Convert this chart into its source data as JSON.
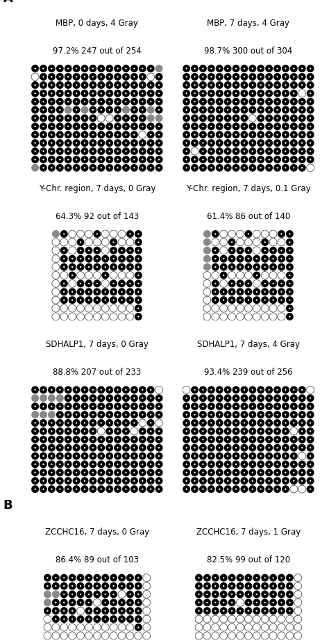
{
  "panels": [
    {
      "title": "MBP, 0 days, 4 Gray",
      "label_text": "97.2% 247 out of 254",
      "rows": 13,
      "cols": 16,
      "grid": [
        [
          0,
          0,
          0,
          0,
          0,
          0,
          0,
          0,
          0,
          0,
          0,
          0,
          0,
          0,
          0,
          2
        ],
        [
          1,
          0,
          0,
          0,
          0,
          0,
          0,
          0,
          0,
          0,
          0,
          0,
          0,
          0,
          1,
          0
        ],
        [
          0,
          0,
          0,
          0,
          0,
          0,
          0,
          0,
          0,
          0,
          0,
          0,
          0,
          0,
          0,
          0
        ],
        [
          0,
          0,
          0,
          0,
          0,
          0,
          0,
          0,
          0,
          0,
          0,
          0,
          0,
          0,
          0,
          0
        ],
        [
          0,
          0,
          0,
          0,
          0,
          0,
          0,
          0,
          0,
          0,
          0,
          0,
          0,
          0,
          0,
          0
        ],
        [
          0,
          0,
          0,
          0,
          2,
          0,
          2,
          0,
          0,
          0,
          0,
          2,
          0,
          0,
          2,
          0
        ],
        [
          0,
          0,
          0,
          0,
          0,
          0,
          0,
          0,
          1,
          1,
          0,
          0,
          0,
          0,
          2,
          2
        ],
        [
          0,
          0,
          0,
          0,
          0,
          0,
          0,
          0,
          0,
          0,
          0,
          0,
          0,
          0,
          0,
          0
        ],
        [
          0,
          0,
          0,
          0,
          0,
          0,
          0,
          0,
          0,
          0,
          0,
          0,
          0,
          1,
          0,
          0
        ],
        [
          0,
          0,
          0,
          0,
          0,
          0,
          0,
          0,
          0,
          0,
          0,
          0,
          0,
          0,
          0,
          0
        ],
        [
          0,
          0,
          0,
          0,
          0,
          0,
          0,
          0,
          0,
          0,
          0,
          0,
          0,
          0,
          0,
          0
        ],
        [
          0,
          0,
          0,
          0,
          0,
          0,
          0,
          0,
          0,
          0,
          0,
          0,
          0,
          0,
          0,
          0
        ],
        [
          2,
          0,
          0,
          0,
          0,
          0,
          0,
          0,
          0,
          0,
          0,
          0,
          0,
          0,
          0,
          0
        ]
      ]
    },
    {
      "title": "MBP, 7 days, 4 Gray",
      "label_text": "98.7% 300 out of 304",
      "rows": 13,
      "cols": 16,
      "grid": [
        [
          0,
          0,
          0,
          0,
          0,
          0,
          0,
          0,
          0,
          0,
          0,
          0,
          0,
          0,
          0,
          0
        ],
        [
          0,
          0,
          0,
          0,
          0,
          0,
          0,
          0,
          0,
          0,
          0,
          0,
          0,
          0,
          0,
          0
        ],
        [
          0,
          0,
          0,
          0,
          0,
          0,
          0,
          0,
          0,
          0,
          0,
          0,
          0,
          0,
          0,
          0
        ],
        [
          0,
          0,
          0,
          0,
          0,
          0,
          0,
          0,
          0,
          0,
          0,
          0,
          0,
          0,
          1,
          0
        ],
        [
          0,
          0,
          0,
          0,
          0,
          0,
          0,
          0,
          0,
          0,
          0,
          0,
          0,
          0,
          0,
          0
        ],
        [
          0,
          0,
          0,
          0,
          0,
          0,
          0,
          0,
          0,
          0,
          0,
          0,
          0,
          0,
          0,
          0
        ],
        [
          0,
          0,
          0,
          0,
          0,
          0,
          0,
          0,
          1,
          0,
          0,
          0,
          0,
          0,
          0,
          0
        ],
        [
          0,
          0,
          0,
          0,
          0,
          0,
          0,
          0,
          0,
          0,
          0,
          0,
          0,
          0,
          0,
          0
        ],
        [
          0,
          0,
          0,
          0,
          0,
          0,
          0,
          0,
          0,
          0,
          0,
          0,
          0,
          0,
          0,
          0
        ],
        [
          0,
          0,
          0,
          0,
          0,
          0,
          0,
          0,
          0,
          0,
          0,
          0,
          0,
          0,
          0,
          0
        ],
        [
          0,
          1,
          0,
          0,
          0,
          0,
          0,
          0,
          0,
          0,
          0,
          0,
          0,
          0,
          0,
          0
        ],
        [
          0,
          0,
          0,
          0,
          0,
          0,
          0,
          0,
          0,
          0,
          0,
          0,
          0,
          0,
          0,
          0
        ],
        [
          0,
          0,
          0,
          0,
          0,
          0,
          0,
          0,
          0,
          0,
          0,
          0,
          0,
          0,
          0,
          1
        ]
      ]
    },
    {
      "title": "Y-Chr. region, 7 days, 0 Gray",
      "label_text": "64.3% 92 out of 143",
      "rows": 11,
      "cols": 11,
      "grid": [
        [
          2,
          0,
          1,
          1,
          1,
          0,
          1,
          1,
          1,
          0,
          0
        ],
        [
          1,
          1,
          1,
          0,
          1,
          1,
          1,
          0,
          1,
          1,
          0
        ],
        [
          1,
          0,
          1,
          0,
          0,
          0,
          1,
          0,
          0,
          0,
          0
        ],
        [
          1,
          0,
          0,
          0,
          0,
          0,
          0,
          0,
          0,
          0,
          0
        ],
        [
          1,
          0,
          0,
          0,
          0,
          0,
          0,
          0,
          0,
          0,
          0
        ],
        [
          1,
          1,
          0,
          1,
          1,
          1,
          0,
          1,
          1,
          1,
          0
        ],
        [
          1,
          0,
          1,
          0,
          0,
          0,
          1,
          0,
          0,
          0,
          0
        ],
        [
          1,
          0,
          0,
          0,
          0,
          0,
          0,
          0,
          0,
          0,
          0
        ],
        [
          1,
          0,
          0,
          0,
          0,
          0,
          0,
          0,
          0,
          0,
          0
        ],
        [
          1,
          1,
          1,
          1,
          1,
          1,
          1,
          1,
          1,
          1,
          0
        ],
        [
          1,
          1,
          1,
          1,
          1,
          1,
          1,
          1,
          1,
          1,
          0
        ]
      ]
    },
    {
      "title": "Y-Chr. region, 7 days, 0.1 Gray",
      "label_text": "61.4% 86 out of 140",
      "rows": 11,
      "cols": 11,
      "grid": [
        [
          2,
          0,
          1,
          1,
          1,
          0,
          1,
          1,
          1,
          0,
          0
        ],
        [
          2,
          1,
          1,
          0,
          1,
          1,
          1,
          0,
          1,
          1,
          0
        ],
        [
          2,
          0,
          1,
          0,
          0,
          0,
          1,
          0,
          0,
          0,
          0
        ],
        [
          2,
          0,
          0,
          0,
          0,
          0,
          0,
          0,
          0,
          0,
          0
        ],
        [
          2,
          0,
          0,
          0,
          0,
          0,
          0,
          0,
          0,
          0,
          0
        ],
        [
          1,
          1,
          0,
          1,
          1,
          1,
          0,
          1,
          1,
          1,
          0
        ],
        [
          1,
          0,
          1,
          0,
          0,
          0,
          1,
          0,
          0,
          0,
          0
        ],
        [
          1,
          0,
          0,
          0,
          0,
          0,
          0,
          0,
          0,
          0,
          0
        ],
        [
          1,
          0,
          0,
          0,
          0,
          0,
          0,
          0,
          0,
          0,
          0
        ],
        [
          1,
          1,
          1,
          1,
          1,
          1,
          1,
          1,
          1,
          1,
          0
        ],
        [
          1,
          1,
          1,
          1,
          1,
          1,
          1,
          1,
          1,
          1,
          0
        ]
      ]
    },
    {
      "title": "SDHALP1, 7 days, 0 Gray",
      "label_text": "88.8% 207 out of 233",
      "rows": 13,
      "cols": 16,
      "grid": [
        [
          0,
          0,
          0,
          0,
          0,
          0,
          0,
          0,
          0,
          0,
          0,
          0,
          0,
          0,
          0,
          1
        ],
        [
          2,
          2,
          2,
          2,
          0,
          0,
          0,
          0,
          0,
          0,
          0,
          0,
          0,
          0,
          0,
          0
        ],
        [
          0,
          0,
          0,
          0,
          0,
          0,
          0,
          0,
          0,
          0,
          0,
          0,
          0,
          0,
          0,
          0
        ],
        [
          2,
          2,
          2,
          0,
          0,
          0,
          0,
          0,
          0,
          0,
          0,
          0,
          0,
          0,
          0,
          0
        ],
        [
          0,
          0,
          0,
          0,
          0,
          0,
          0,
          0,
          0,
          0,
          0,
          0,
          0,
          1,
          0,
          1
        ],
        [
          0,
          0,
          0,
          0,
          0,
          0,
          0,
          0,
          1,
          0,
          0,
          0,
          1,
          0,
          0,
          0
        ],
        [
          0,
          0,
          0,
          0,
          0,
          0,
          0,
          0,
          0,
          0,
          0,
          0,
          0,
          0,
          0,
          0
        ],
        [
          0,
          0,
          0,
          0,
          0,
          0,
          0,
          0,
          0,
          0,
          0,
          0,
          0,
          0,
          0,
          0
        ],
        [
          0,
          0,
          0,
          0,
          0,
          0,
          0,
          0,
          0,
          0,
          0,
          0,
          0,
          0,
          0,
          0
        ],
        [
          0,
          0,
          0,
          0,
          0,
          0,
          0,
          0,
          0,
          0,
          0,
          0,
          0,
          0,
          0,
          0
        ],
        [
          0,
          0,
          0,
          0,
          0,
          0,
          0,
          0,
          0,
          0,
          0,
          0,
          0,
          0,
          0,
          0
        ],
        [
          0,
          0,
          0,
          0,
          0,
          0,
          0,
          0,
          0,
          0,
          0,
          0,
          0,
          0,
          0,
          0
        ],
        [
          0,
          0,
          0,
          0,
          0,
          0,
          0,
          0,
          0,
          0,
          0,
          0,
          0,
          0,
          0,
          0
        ]
      ]
    },
    {
      "title": "SDHALP1, 7 days, 4 Gray",
      "label_text": "93.4% 239 out of 256",
      "rows": 13,
      "cols": 16,
      "grid": [
        [
          1,
          0,
          0,
          0,
          0,
          0,
          0,
          0,
          0,
          0,
          0,
          0,
          0,
          0,
          0,
          1
        ],
        [
          0,
          0,
          0,
          0,
          0,
          0,
          0,
          0,
          0,
          0,
          0,
          0,
          0,
          0,
          0,
          0
        ],
        [
          0,
          0,
          0,
          0,
          0,
          0,
          0,
          0,
          0,
          0,
          0,
          0,
          0,
          0,
          0,
          0
        ],
        [
          0,
          0,
          0,
          0,
          0,
          0,
          0,
          0,
          0,
          0,
          0,
          0,
          0,
          0,
          0,
          0
        ],
        [
          0,
          0,
          0,
          0,
          0,
          0,
          0,
          0,
          0,
          0,
          0,
          0,
          0,
          0,
          0,
          0
        ],
        [
          0,
          0,
          0,
          0,
          0,
          0,
          0,
          0,
          0,
          0,
          0,
          0,
          0,
          1,
          0,
          0
        ],
        [
          0,
          0,
          0,
          0,
          0,
          0,
          0,
          0,
          0,
          0,
          0,
          0,
          0,
          0,
          0,
          0
        ],
        [
          0,
          0,
          0,
          0,
          0,
          0,
          0,
          0,
          0,
          0,
          0,
          0,
          0,
          0,
          0,
          0
        ],
        [
          0,
          0,
          0,
          0,
          0,
          0,
          0,
          0,
          0,
          0,
          0,
          0,
          0,
          0,
          1,
          0
        ],
        [
          0,
          0,
          0,
          0,
          0,
          0,
          0,
          0,
          0,
          0,
          0,
          0,
          0,
          0,
          0,
          0
        ],
        [
          0,
          0,
          0,
          0,
          0,
          0,
          0,
          0,
          0,
          0,
          0,
          0,
          0,
          0,
          0,
          0
        ],
        [
          0,
          0,
          0,
          0,
          0,
          0,
          0,
          0,
          0,
          0,
          0,
          0,
          0,
          0,
          0,
          0
        ],
        [
          0,
          0,
          0,
          0,
          0,
          0,
          0,
          0,
          0,
          0,
          0,
          0,
          0,
          1,
          1,
          0
        ]
      ]
    },
    {
      "title": "ZCCHC16, 7 days, 0 Gray",
      "label_text": "86.4% 89 out of 103",
      "rows": 8,
      "cols": 13,
      "grid": [
        [
          0,
          0,
          0,
          0,
          0,
          0,
          0,
          0,
          0,
          0,
          0,
          0,
          1
        ],
        [
          0,
          0,
          0,
          0,
          0,
          0,
          0,
          0,
          0,
          0,
          0,
          0,
          1
        ],
        [
          2,
          2,
          0,
          0,
          0,
          0,
          0,
          0,
          0,
          1,
          0,
          0,
          1
        ],
        [
          2,
          0,
          0,
          0,
          0,
          0,
          1,
          0,
          0,
          0,
          0,
          0,
          1
        ],
        [
          0,
          0,
          0,
          0,
          1,
          0,
          0,
          0,
          0,
          0,
          0,
          0,
          1
        ],
        [
          1,
          0,
          0,
          0,
          0,
          0,
          0,
          0,
          0,
          0,
          0,
          0,
          1
        ],
        [
          1,
          1,
          1,
          1,
          1,
          1,
          1,
          1,
          1,
          1,
          1,
          0,
          1
        ],
        [
          1,
          1,
          1,
          1,
          1,
          1,
          1,
          1,
          1,
          1,
          1,
          1,
          1
        ]
      ]
    },
    {
      "title": "ZCCHC16, 7 days, 1 Gray",
      "label_text": "82.5% 99 out of 120",
      "rows": 8,
      "cols": 13,
      "grid": [
        [
          0,
          0,
          0,
          0,
          0,
          0,
          0,
          0,
          0,
          0,
          0,
          0,
          1
        ],
        [
          0,
          0,
          0,
          0,
          0,
          0,
          0,
          0,
          0,
          0,
          0,
          0,
          1
        ],
        [
          0,
          0,
          0,
          0,
          0,
          0,
          0,
          0,
          0,
          0,
          0,
          0,
          1
        ],
        [
          0,
          0,
          0,
          0,
          0,
          1,
          0,
          0,
          0,
          0,
          0,
          0,
          1
        ],
        [
          0,
          0,
          0,
          0,
          0,
          0,
          0,
          0,
          0,
          0,
          0,
          0,
          1
        ],
        [
          1,
          1,
          1,
          1,
          1,
          1,
          1,
          1,
          1,
          1,
          1,
          1,
          1
        ],
        [
          1,
          1,
          1,
          1,
          1,
          1,
          1,
          1,
          1,
          1,
          1,
          1,
          1
        ],
        [
          1,
          1,
          1,
          1,
          1,
          1,
          1,
          1,
          1,
          1,
          1,
          1,
          1
        ]
      ]
    }
  ],
  "bg_color": "#000000",
  "circle_fill_black": "#000000",
  "circle_fill_white": "#ffffff",
  "circle_fill_gray": "#888888",
  "dot_color": "#ffffff",
  "title_fontsize": 8.5,
  "label_fontsize": 8.5,
  "section_fontsize": 13
}
